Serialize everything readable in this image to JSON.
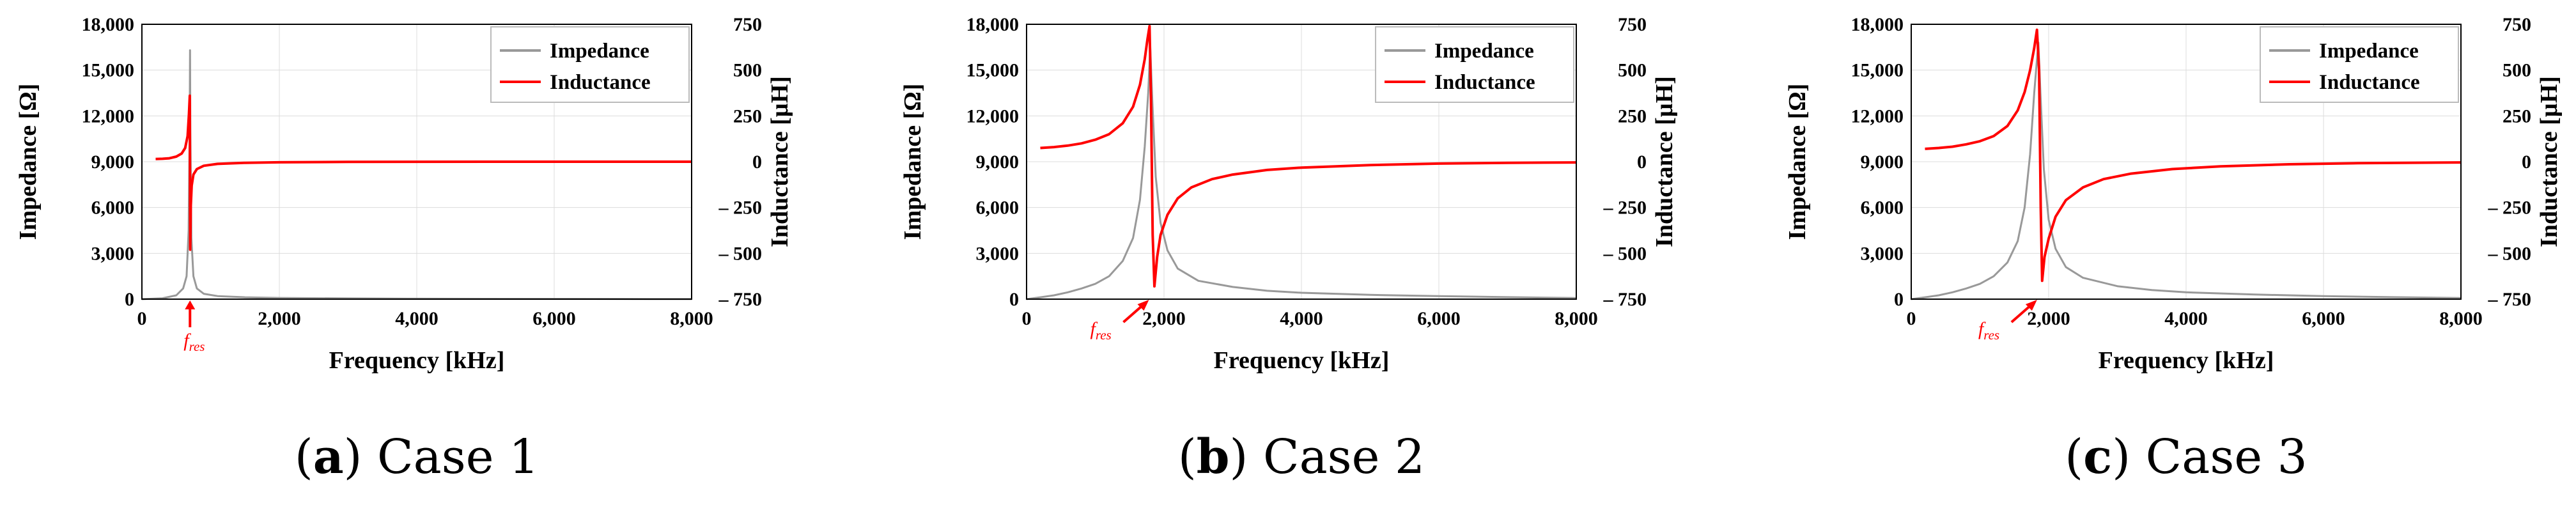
{
  "colors": {
    "impedance": "#999999",
    "inductance": "#ff0000",
    "axis": "#000000",
    "grid": "#dcdcdc"
  },
  "chart_data": [
    {
      "type": "line",
      "caption": {
        "open": "(",
        "letter": "a",
        "close": ")",
        "text": " Case 1"
      },
      "xlabel": "Frequency [kHz]",
      "ylabel": "Impedance [Ω]",
      "y2label": "Inductance [µH]",
      "xlim": [
        0,
        8000
      ],
      "ylim": [
        0,
        18000
      ],
      "y2lim": [
        -750,
        750
      ],
      "xticks": [
        "0",
        "2,000",
        "4,000",
        "6,000",
        "8,000"
      ],
      "yticks": [
        "0",
        "3,000",
        "6,000",
        "9,000",
        "12,000",
        "15,000",
        "18,000"
      ],
      "y2ticks": [
        "– 750",
        "– 500",
        "– 250",
        "0",
        "250",
        "500",
        "750"
      ],
      "legend": [
        "Impedance",
        "Inductance"
      ],
      "annotation": {
        "text": "f",
        "sub": "res",
        "x": 700
      },
      "resonance_khz": 700,
      "series": [
        {
          "name": "Impedance",
          "axis": "left",
          "points": [
            [
              0,
              0
            ],
            [
              300,
              60
            ],
            [
              500,
              250
            ],
            [
              600,
              700
            ],
            [
              650,
              1500
            ],
            [
              680,
              4500
            ],
            [
              695,
              11000
            ],
            [
              700,
              16300
            ],
            [
              705,
              11000
            ],
            [
              720,
              4000
            ],
            [
              750,
              1500
            ],
            [
              800,
              700
            ],
            [
              900,
              350
            ],
            [
              1100,
              200
            ],
            [
              1500,
              120
            ],
            [
              2000,
              80
            ],
            [
              3000,
              50
            ],
            [
              4000,
              30
            ],
            [
              5000,
              20
            ],
            [
              6000,
              15
            ],
            [
              7000,
              10
            ],
            [
              8000,
              5
            ]
          ]
        },
        {
          "name": "Inductance",
          "axis": "right",
          "points": [
            [
              200,
              15
            ],
            [
              300,
              16
            ],
            [
              400,
              19
            ],
            [
              500,
              28
            ],
            [
              580,
              45
            ],
            [
              630,
              75
            ],
            [
              665,
              140
            ],
            [
              685,
              260
            ],
            [
              697,
              360
            ],
            [
              703,
              -480
            ],
            [
              712,
              -240
            ],
            [
              725,
              -130
            ],
            [
              750,
              -70
            ],
            [
              800,
              -40
            ],
            [
              900,
              -22
            ],
            [
              1100,
              -12
            ],
            [
              1500,
              -6
            ],
            [
              2000,
              -3
            ],
            [
              3000,
              -1
            ],
            [
              5000,
              0
            ],
            [
              8000,
              0
            ]
          ]
        }
      ]
    },
    {
      "type": "line",
      "caption": {
        "open": "(",
        "letter": "b",
        "close": ")",
        "text": " Case 2"
      },
      "xlabel": "Frequency [kHz]",
      "ylabel": "Impedance [Ω]",
      "y2label": "Inductance [µH]",
      "xlim": [
        0,
        8000
      ],
      "ylim": [
        0,
        18000
      ],
      "y2lim": [
        -750,
        750
      ],
      "xticks": [
        "0",
        "2,000",
        "4,000",
        "6,000",
        "8,000"
      ],
      "yticks": [
        "0",
        "3,000",
        "6,000",
        "9,000",
        "12,000",
        "15,000",
        "18,000"
      ],
      "y2ticks": [
        "– 750",
        "– 500",
        "– 250",
        "0",
        "250",
        "500",
        "750"
      ],
      "legend": [
        "Impedance",
        "Inductance"
      ],
      "annotation": {
        "text": "f",
        "sub": "res",
        "x": 1800
      },
      "resonance_khz": 1800,
      "series": [
        {
          "name": "Impedance",
          "axis": "left",
          "points": [
            [
              0,
              0
            ],
            [
              200,
              120
            ],
            [
              400,
              250
            ],
            [
              600,
              450
            ],
            [
              800,
              700
            ],
            [
              1000,
              1000
            ],
            [
              1200,
              1500
            ],
            [
              1400,
              2500
            ],
            [
              1550,
              4000
            ],
            [
              1650,
              6500
            ],
            [
              1720,
              10000
            ],
            [
              1770,
              13500
            ],
            [
              1800,
              16500
            ],
            [
              1830,
              13000
            ],
            [
              1880,
              8000
            ],
            [
              1950,
              5000
            ],
            [
              2050,
              3200
            ],
            [
              2200,
              2000
            ],
            [
              2500,
              1200
            ],
            [
              3000,
              800
            ],
            [
              3500,
              550
            ],
            [
              4000,
              420
            ],
            [
              5000,
              280
            ],
            [
              6000,
              200
            ],
            [
              7000,
              130
            ],
            [
              8000,
              70
            ]
          ]
        },
        {
          "name": "Inductance",
          "axis": "right",
          "points": [
            [
              200,
              75
            ],
            [
              400,
              80
            ],
            [
              600,
              88
            ],
            [
              800,
              100
            ],
            [
              1000,
              120
            ],
            [
              1200,
              150
            ],
            [
              1400,
              210
            ],
            [
              1550,
              300
            ],
            [
              1650,
              420
            ],
            [
              1720,
              560
            ],
            [
              1760,
              670
            ],
            [
              1790,
              740
            ],
            [
              1810,
              350
            ],
            [
              1835,
              -400
            ],
            [
              1860,
              -680
            ],
            [
              1900,
              -520
            ],
            [
              1950,
              -400
            ],
            [
              2050,
              -290
            ],
            [
              2200,
              -200
            ],
            [
              2400,
              -140
            ],
            [
              2700,
              -95
            ],
            [
              3000,
              -70
            ],
            [
              3500,
              -45
            ],
            [
              4000,
              -32
            ],
            [
              5000,
              -18
            ],
            [
              6000,
              -10
            ],
            [
              7000,
              -6
            ],
            [
              8000,
              -4
            ]
          ]
        }
      ]
    },
    {
      "type": "line",
      "caption": {
        "open": "(",
        "letter": "c",
        "close": ")",
        "text": " Case 3"
      },
      "xlabel": "Frequency [kHz]",
      "ylabel": "Impedance [Ω]",
      "y2label": "Inductance [µH]",
      "xlim": [
        0,
        8000
      ],
      "ylim": [
        0,
        18000
      ],
      "y2lim": [
        -750,
        750
      ],
      "xticks": [
        "0",
        "2,000",
        "4,000",
        "6,000",
        "8,000"
      ],
      "yticks": [
        "0",
        "3,000",
        "6,000",
        "9,000",
        "12,000",
        "15,000",
        "18,000"
      ],
      "y2ticks": [
        "– 750",
        "– 500",
        "– 250",
        "0",
        "250",
        "500",
        "750"
      ],
      "legend": [
        "Impedance",
        "Inductance"
      ],
      "annotation": {
        "text": "f",
        "sub": "res",
        "x": 1850
      },
      "resonance_khz": 1850,
      "series": [
        {
          "name": "Impedance",
          "axis": "left",
          "points": [
            [
              0,
              0
            ],
            [
              200,
              120
            ],
            [
              400,
              250
            ],
            [
              600,
              450
            ],
            [
              800,
              700
            ],
            [
              1000,
              1000
            ],
            [
              1200,
              1500
            ],
            [
              1400,
              2400
            ],
            [
              1550,
              3800
            ],
            [
              1650,
              6000
            ],
            [
              1730,
              9500
            ],
            [
              1790,
              13500
            ],
            [
              1850,
              16800
            ],
            [
              1880,
              13500
            ],
            [
              1930,
              8500
            ],
            [
              2000,
              5200
            ],
            [
              2100,
              3300
            ],
            [
              2250,
              2100
            ],
            [
              2500,
              1400
            ],
            [
              3000,
              850
            ],
            [
              3500,
              600
            ],
            [
              4000,
              450
            ],
            [
              5000,
              300
            ],
            [
              6000,
              200
            ],
            [
              7000,
              130
            ],
            [
              8000,
              70
            ]
          ]
        },
        {
          "name": "Inductance",
          "axis": "right",
          "points": [
            [
              200,
              70
            ],
            [
              400,
              75
            ],
            [
              600,
              82
            ],
            [
              800,
              95
            ],
            [
              1000,
              112
            ],
            [
              1200,
              140
            ],
            [
              1400,
              195
            ],
            [
              1550,
              280
            ],
            [
              1650,
              380
            ],
            [
              1730,
              500
            ],
            [
              1790,
              620
            ],
            [
              1830,
              720
            ],
            [
              1860,
              500
            ],
            [
              1885,
              -250
            ],
            [
              1905,
              -650
            ],
            [
              1940,
              -520
            ],
            [
              2000,
              -420
            ],
            [
              2100,
              -300
            ],
            [
              2250,
              -210
            ],
            [
              2500,
              -140
            ],
            [
              2800,
              -95
            ],
            [
              3200,
              -65
            ],
            [
              3800,
              -40
            ],
            [
              4500,
              -25
            ],
            [
              5500,
              -14
            ],
            [
              6500,
              -8
            ],
            [
              8000,
              -4
            ]
          ]
        }
      ]
    }
  ]
}
